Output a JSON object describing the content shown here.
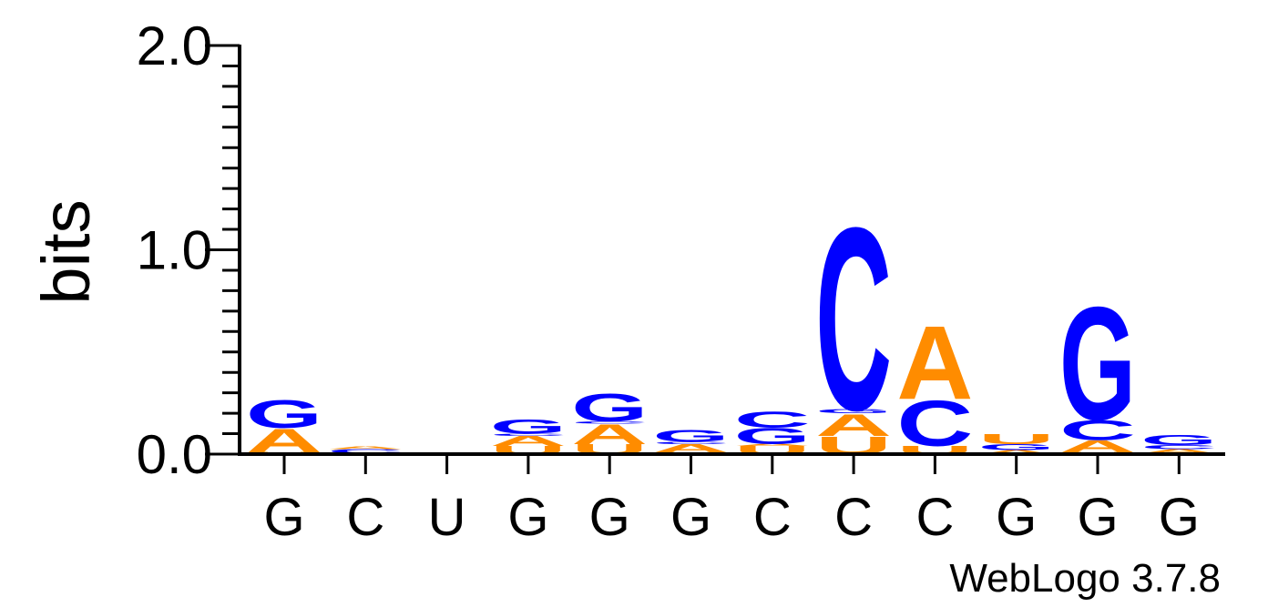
{
  "chart_data": {
    "type": "sequence-logo",
    "ylabel": "bits",
    "ylim": [
      0,
      2.0
    ],
    "y_ticks": [
      "0.0",
      "1.0",
      "2.0"
    ],
    "x_ticks": [
      "G",
      "C",
      "U",
      "G",
      "G",
      "G",
      "C",
      "C",
      "C",
      "G",
      "G",
      "G"
    ],
    "credit": "WebLogo 3.7.8",
    "colors": {
      "A": "#ff8c00",
      "U": "#ff8c00",
      "C": "#0000ff",
      "G": "#0000ff"
    },
    "positions": [
      {
        "stack": [
          {
            "letter": "U",
            "bits": 0.01
          },
          {
            "letter": "A",
            "bits": 0.12
          },
          {
            "letter": "G",
            "bits": 0.14
          }
        ]
      },
      {
        "stack": [
          {
            "letter": "U",
            "bits": 0.005
          },
          {
            "letter": "C",
            "bits": 0.02
          },
          {
            "letter": "A",
            "bits": 0.015
          }
        ]
      },
      {
        "stack": []
      },
      {
        "stack": [
          {
            "letter": "U",
            "bits": 0.04
          },
          {
            "letter": "A",
            "bits": 0.05
          },
          {
            "letter": "C",
            "bits": 0.01
          },
          {
            "letter": "G",
            "bits": 0.07
          }
        ]
      },
      {
        "stack": [
          {
            "letter": "U",
            "bits": 0.05
          },
          {
            "letter": "A",
            "bits": 0.1
          },
          {
            "letter": "C",
            "bits": 0.01
          },
          {
            "letter": "G",
            "bits": 0.14
          }
        ]
      },
      {
        "stack": [
          {
            "letter": "U",
            "bits": 0.01
          },
          {
            "letter": "A",
            "bits": 0.04
          },
          {
            "letter": "C",
            "bits": 0.01
          },
          {
            "letter": "G",
            "bits": 0.06
          }
        ]
      },
      {
        "stack": [
          {
            "letter": "U",
            "bits": 0.04
          },
          {
            "letter": "A",
            "bits": 0.01
          },
          {
            "letter": "G",
            "bits": 0.08
          },
          {
            "letter": "C",
            "bits": 0.08
          }
        ]
      },
      {
        "stack": [
          {
            "letter": "U",
            "bits": 0.09
          },
          {
            "letter": "A",
            "bits": 0.11
          },
          {
            "letter": "G",
            "bits": 0.02
          },
          {
            "letter": "C",
            "bits": 0.92
          }
        ]
      },
      {
        "stack": [
          {
            "letter": "U",
            "bits": 0.04
          },
          {
            "letter": "C",
            "bits": 0.23
          },
          {
            "letter": "A",
            "bits": 0.37
          }
        ]
      },
      {
        "stack": [
          {
            "letter": "A",
            "bits": 0.02
          },
          {
            "letter": "G",
            "bits": 0.03
          },
          {
            "letter": "U",
            "bits": 0.05
          }
        ]
      },
      {
        "stack": [
          {
            "letter": "U",
            "bits": 0.01
          },
          {
            "letter": "A",
            "bits": 0.06
          },
          {
            "letter": "C",
            "bits": 0.1
          },
          {
            "letter": "G",
            "bits": 0.57
          }
        ]
      },
      {
        "stack": [
          {
            "letter": "U",
            "bits": 0.005
          },
          {
            "letter": "A",
            "bits": 0.02
          },
          {
            "letter": "C",
            "bits": 0.02
          },
          {
            "letter": "G",
            "bits": 0.05
          }
        ]
      }
    ]
  }
}
